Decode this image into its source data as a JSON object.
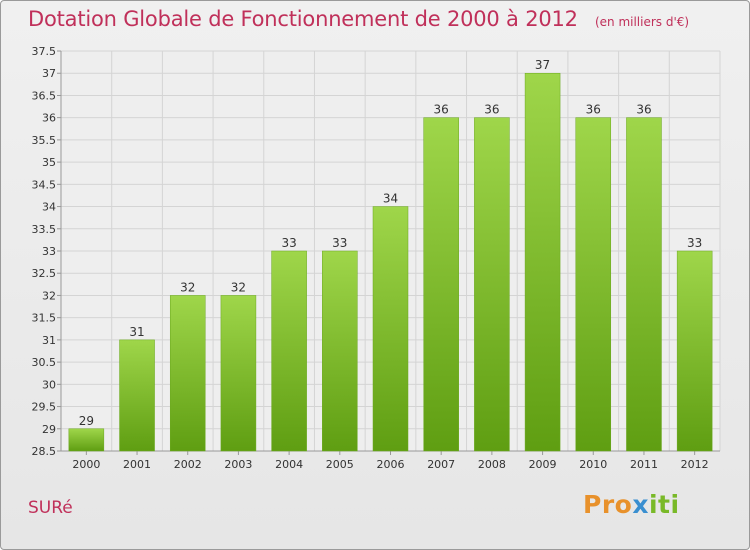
{
  "header": {
    "title": "Dotation Globale de Fonctionnement de 2000 à 2012",
    "subtitle": "(en milliers d'€)"
  },
  "footer": {
    "commune": "SURé",
    "logo": {
      "part1": "Pro",
      "part2": "x",
      "part3": "iti"
    }
  },
  "colors": {
    "accent": "#c0305a",
    "bar_light": "#9fd64a",
    "bar_dark": "#5f9e12",
    "grid": "#d4d4d4"
  },
  "chart_data": {
    "type": "bar",
    "title": "Dotation Globale de Fonctionnement de 2000 à 2012",
    "subtitle": "(en milliers d'€)",
    "categories": [
      "2000",
      "2001",
      "2002",
      "2003",
      "2004",
      "2005",
      "2006",
      "2007",
      "2008",
      "2009",
      "2010",
      "2011",
      "2012"
    ],
    "values": [
      29,
      31,
      32,
      32,
      33,
      33,
      34,
      36,
      36,
      37,
      36,
      36,
      33
    ],
    "data_labels": [
      "29",
      "31",
      "32",
      "32",
      "33",
      "33",
      "34",
      "36",
      "36",
      "37",
      "36",
      "36",
      "33"
    ],
    "y_ticks": [
      "28.5",
      "29",
      "29.5",
      "30",
      "30.5",
      "31",
      "31.5",
      "32",
      "32.5",
      "33",
      "33.5",
      "34",
      "34.5",
      "35",
      "35.5",
      "36",
      "36.5",
      "37",
      "37.5"
    ],
    "ylim": [
      28.5,
      37.5
    ],
    "xlabel": "",
    "ylabel": "",
    "grid": true
  }
}
